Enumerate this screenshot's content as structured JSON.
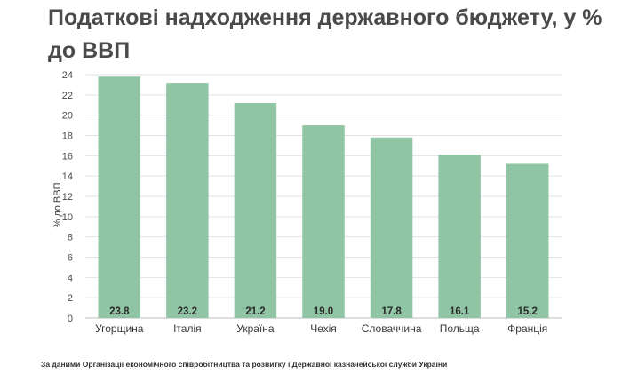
{
  "colors": {
    "bar": "#8fc4a4",
    "grid": "#e2e2e2",
    "axis": "#bdbdbd"
  },
  "chart_data": {
    "type": "bar",
    "title": "Податкові надходження державного бюджету, у % до ВВП",
    "ylabel": "% до ВВП",
    "xlabel": "",
    "ylim": [
      0,
      24
    ],
    "yticks": [
      0,
      2,
      4,
      6,
      8,
      10,
      12,
      14,
      16,
      18,
      20,
      22,
      24
    ],
    "categories": [
      "Угорщина",
      "Італія",
      "Україна",
      "Чехія",
      "Словаччина",
      "Польща",
      "Франція"
    ],
    "values": [
      23.8,
      23.2,
      21.2,
      19.0,
      17.8,
      16.1,
      15.2
    ],
    "value_labels": [
      "23.8",
      "23.2",
      "21.2",
      "19.0",
      "17.8",
      "16.1",
      "15.2"
    ],
    "grid": true,
    "legend": "none"
  },
  "source": "За даними Організації економічного співробітництва та розвитку і Державної казначейської служби України"
}
